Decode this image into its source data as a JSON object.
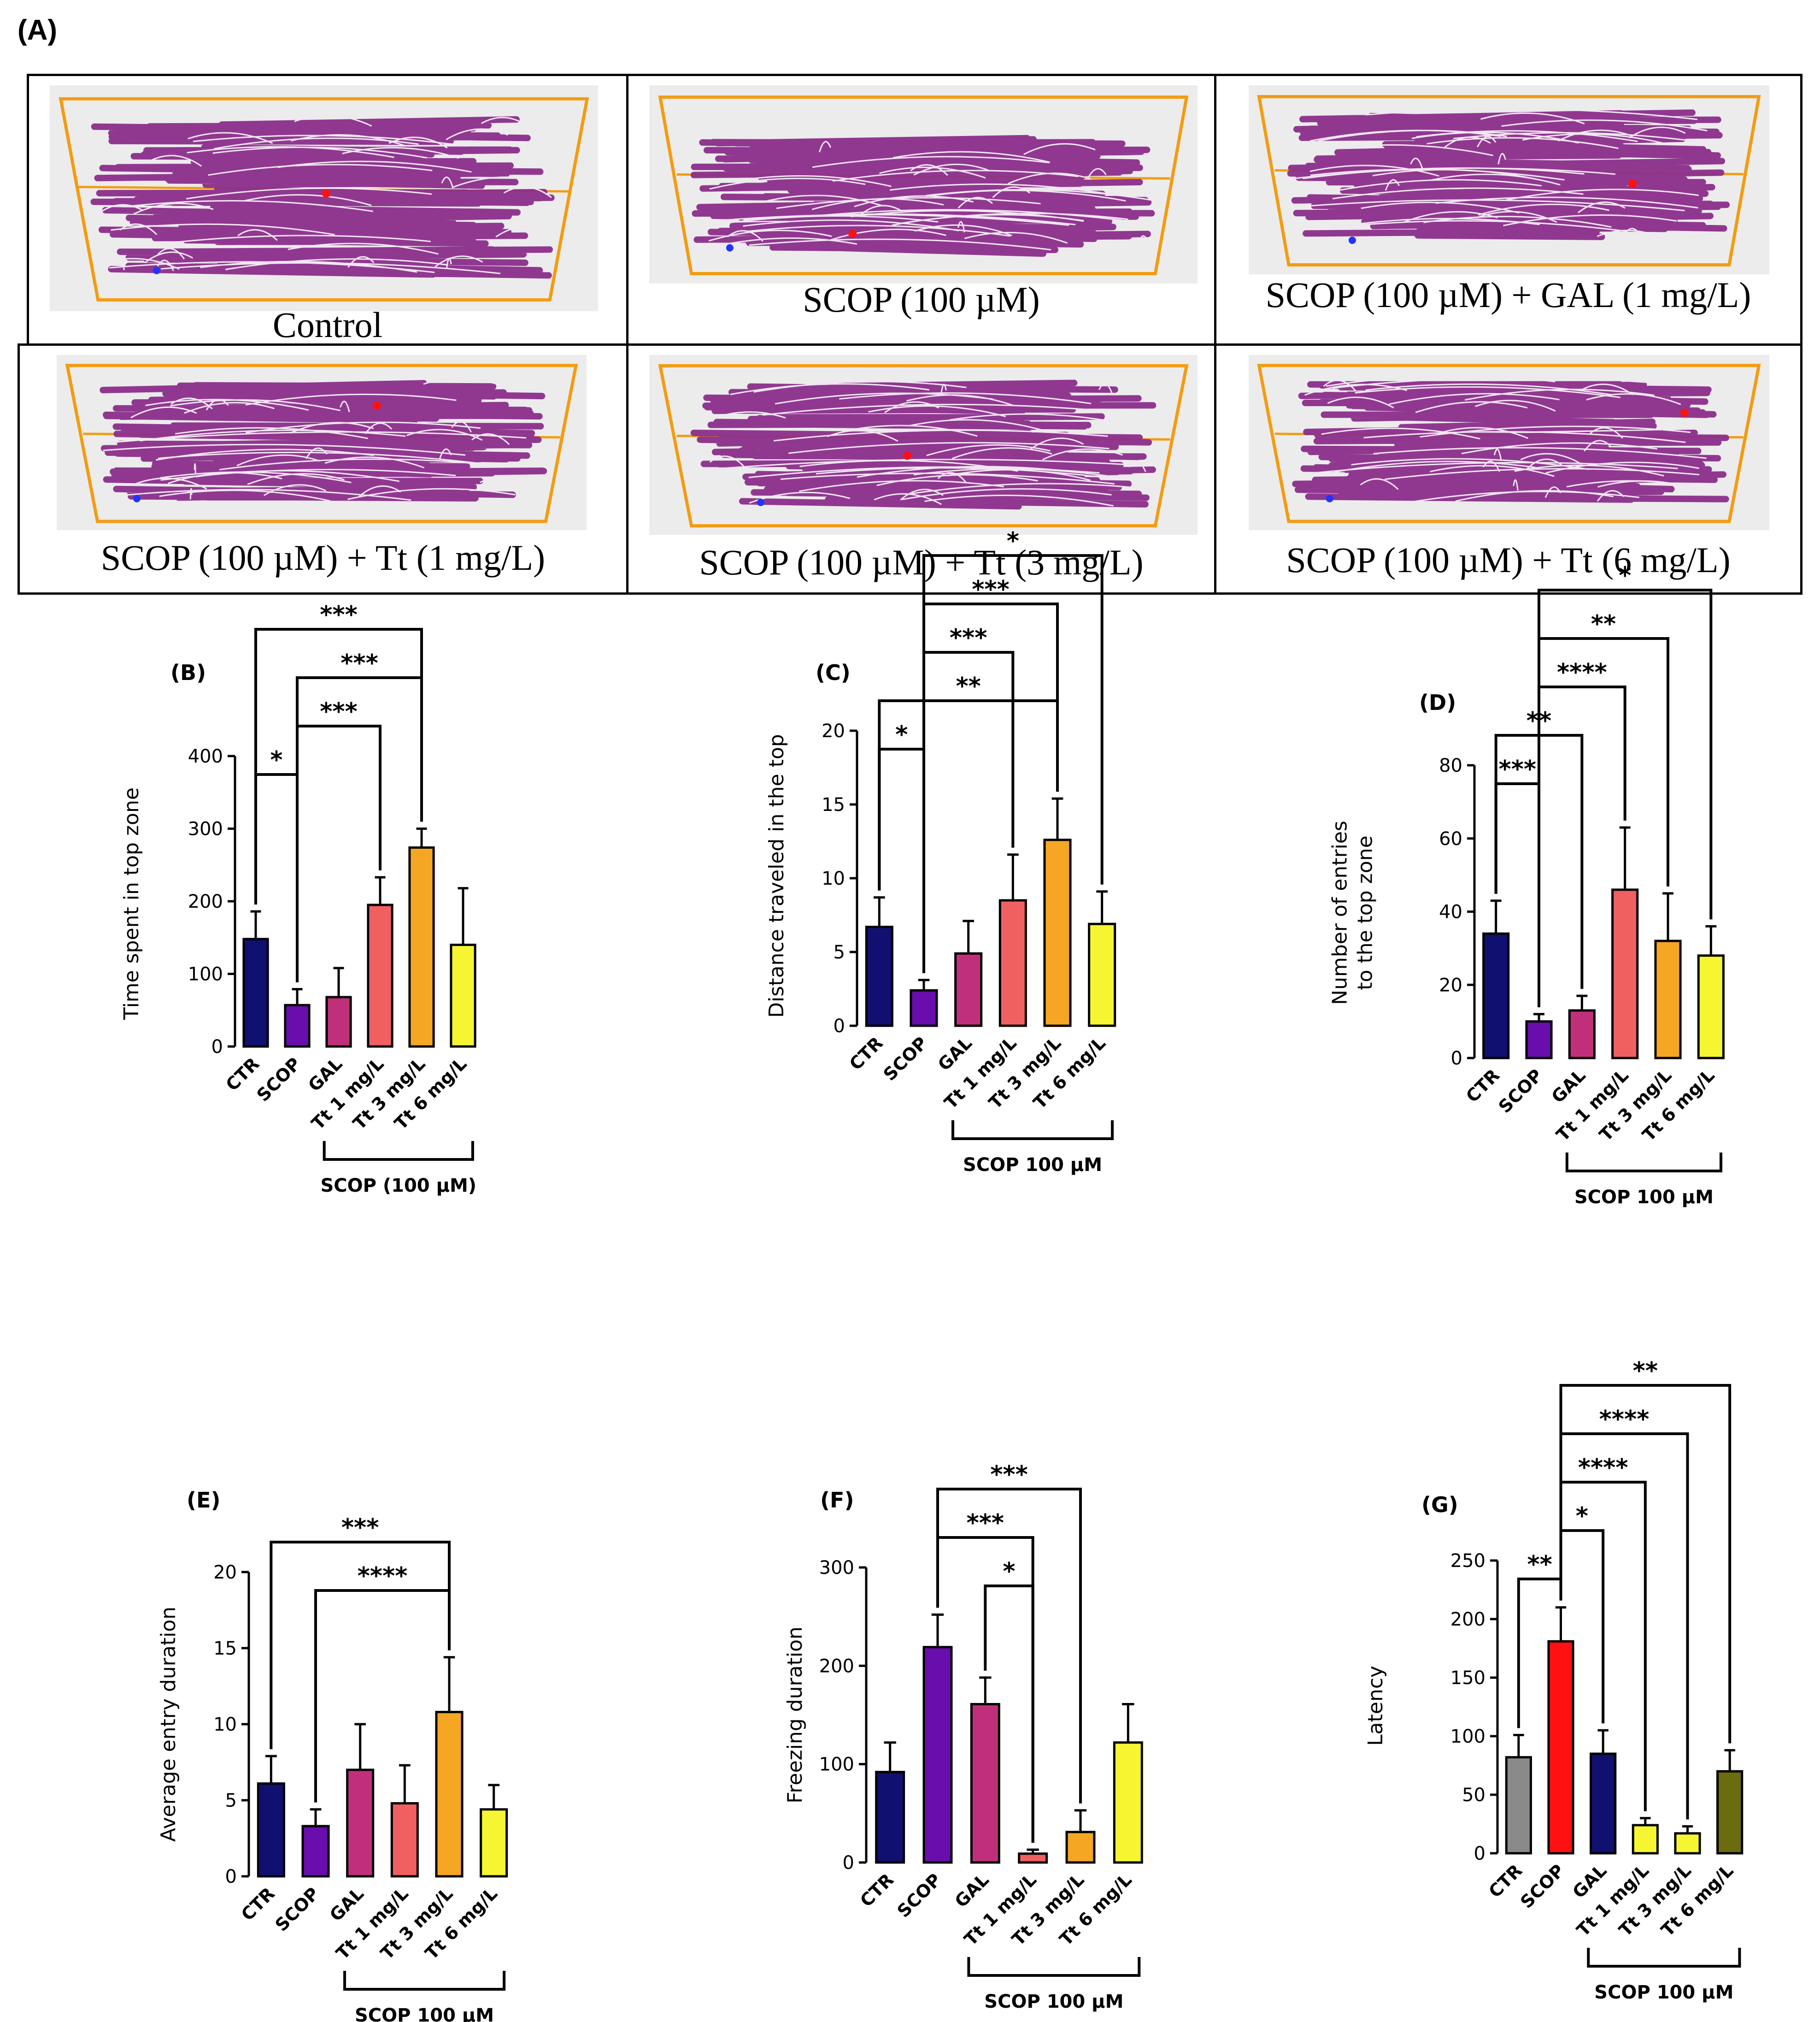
{
  "figure": {
    "panel_a_label": "(A)",
    "track_colors": {
      "path": "#8b2e8b",
      "arena": "#f39c12",
      "background": "#ececec",
      "start": "#2233ff",
      "end": "#ff1111"
    },
    "conditions": [
      "Control",
      "SCOP (100 µM)",
      "SCOP (100 µM) + GAL (1 mg/L)",
      "SCOP (100 µM) + Tt (1 mg/L)",
      "SCOP (100 µM) + Tt (3 mg/L)",
      "SCOP (100 µM) + Tt (6 mg/L)"
    ]
  },
  "chart_data": [
    {
      "id": "B",
      "panel": "(B)",
      "type": "bar",
      "ylabel": "Time spent in top zone",
      "ylim": [
        0,
        400
      ],
      "yticks": [
        0,
        100,
        200,
        300,
        400
      ],
      "categories": [
        "CTR",
        "SCOP",
        "GAL",
        "Tt 1 mg/L",
        "Tt 3 mg/L",
        "Tt 6 mg/L"
      ],
      "values": [
        148,
        57,
        68,
        195,
        274,
        140
      ],
      "errors": [
        38,
        22,
        40,
        38,
        26,
        78
      ],
      "colors": [
        "#101070",
        "#6a0dad",
        "#c0307a",
        "#f06060",
        "#f5a623",
        "#f5f532"
      ],
      "group_label": "SCOP (100 µM)",
      "comparisons": [
        {
          "from": 0,
          "to": 1,
          "stars": "*"
        },
        {
          "from": 1,
          "to": 3,
          "stars": "***"
        },
        {
          "from": 1,
          "to": 4,
          "stars": "***"
        },
        {
          "from": 0,
          "to": 4,
          "stars": "***"
        }
      ]
    },
    {
      "id": "C",
      "panel": "(C)",
      "type": "bar",
      "ylabel": "Distance traveled in the top",
      "ylim": [
        0,
        20
      ],
      "yticks": [
        0,
        5,
        10,
        15,
        20
      ],
      "categories": [
        "CTR",
        "SCOP",
        "GAL",
        "Tt 1 mg/L",
        "Tt 3 mg/L",
        "Tt 6 mg/L"
      ],
      "values": [
        6.7,
        2.4,
        4.9,
        8.5,
        12.6,
        6.9
      ],
      "errors": [
        2.0,
        0.7,
        2.2,
        3.1,
        2.8,
        2.2
      ],
      "colors": [
        "#101070",
        "#6a0dad",
        "#c0307a",
        "#f06060",
        "#f5a623",
        "#f5f532"
      ],
      "group_label": "SCOP 100 µM",
      "comparisons": [
        {
          "from": 0,
          "to": 1,
          "stars": "*"
        },
        {
          "from": 0,
          "to": 4,
          "stars": "**"
        },
        {
          "from": 1,
          "to": 3,
          "stars": "***"
        },
        {
          "from": 1,
          "to": 4,
          "stars": "***"
        },
        {
          "from": 1,
          "to": 5,
          "stars": "*"
        }
      ]
    },
    {
      "id": "D",
      "panel": "(D)",
      "type": "bar",
      "ylabel": "Number of entries to the top zone",
      "ylabel_lines": [
        "Number of entries",
        "to the top zone"
      ],
      "ylim": [
        0,
        80
      ],
      "yticks": [
        0,
        20,
        40,
        60,
        80
      ],
      "categories": [
        "CTR",
        "SCOP",
        "GAL",
        "Tt 1 mg/L",
        "Tt 3 mg/L",
        "Tt 6 mg/L"
      ],
      "values": [
        34,
        10,
        13,
        46,
        32,
        28
      ],
      "errors": [
        9,
        2,
        4,
        17,
        13,
        8
      ],
      "colors": [
        "#101070",
        "#6a0dad",
        "#c0307a",
        "#f06060",
        "#f5a623",
        "#f5f532"
      ],
      "group_label": "SCOP 100 µM",
      "comparisons": [
        {
          "from": 0,
          "to": 1,
          "stars": "***"
        },
        {
          "from": 0,
          "to": 2,
          "stars": "**"
        },
        {
          "from": 1,
          "to": 3,
          "stars": "****"
        },
        {
          "from": 1,
          "to": 4,
          "stars": "**"
        },
        {
          "from": 1,
          "to": 5,
          "stars": "*"
        }
      ]
    },
    {
      "id": "E",
      "panel": "(E)",
      "type": "bar",
      "ylabel": "Average entry duration",
      "ylim": [
        0,
        20
      ],
      "yticks": [
        0,
        5,
        10,
        15,
        20
      ],
      "categories": [
        "CTR",
        "SCOP",
        "GAL",
        "Tt 1 mg/L",
        "Tt 3 mg/L",
        "Tt 6 mg/L"
      ],
      "values": [
        6.1,
        3.3,
        7.0,
        4.8,
        10.8,
        4.4
      ],
      "errors": [
        1.8,
        1.1,
        3.0,
        2.5,
        3.6,
        1.6
      ],
      "colors": [
        "#101070",
        "#6a0dad",
        "#c0307a",
        "#f06060",
        "#f5a623",
        "#f5f532"
      ],
      "group_label": "SCOP 100 µM",
      "comparisons": [
        {
          "from": 1,
          "to": 4,
          "stars": "****"
        },
        {
          "from": 0,
          "to": 4,
          "stars": "***"
        }
      ]
    },
    {
      "id": "F",
      "panel": "(F)",
      "type": "bar",
      "ylabel": "Freezing duration",
      "ylim": [
        0,
        300
      ],
      "yticks": [
        0,
        100,
        200,
        300
      ],
      "categories": [
        "CTR",
        "SCOP",
        "GAL",
        "Tt 1 mg/L",
        "Tt 3 mg/L",
        "Tt 6 mg/L"
      ],
      "values": [
        92,
        219,
        161,
        9,
        31,
        122
      ],
      "errors": [
        30,
        33,
        27,
        4,
        22,
        39
      ],
      "colors": [
        "#101070",
        "#6a0dad",
        "#c0307a",
        "#f06060",
        "#f5a623",
        "#f5f532"
      ],
      "group_label": "SCOP 100 µM",
      "comparisons": [
        {
          "from": 2,
          "to": 3,
          "stars": "*"
        },
        {
          "from": 1,
          "to": 3,
          "stars": "***"
        },
        {
          "from": 1,
          "to": 4,
          "stars": "***"
        }
      ]
    },
    {
      "id": "G",
      "panel": "(G)",
      "type": "bar",
      "ylabel": "Latency",
      "ylim": [
        0,
        250
      ],
      "yticks": [
        0,
        50,
        100,
        150,
        200,
        250
      ],
      "categories": [
        "CTR",
        "SCOP",
        "GAL",
        "Tt 1 mg/L",
        "Tt 3 mg/L",
        "Tt 6 mg/L"
      ],
      "values": [
        82,
        181,
        85,
        24,
        17,
        70
      ],
      "errors": [
        19,
        29,
        20,
        6,
        6,
        18
      ],
      "colors": [
        "#8a8a8a",
        "#ff1111",
        "#101070",
        "#f5f532",
        "#f5f532",
        "#6b6b10"
      ],
      "group_label": "SCOP 100 µM",
      "comparisons": [
        {
          "from": 0,
          "to": 1,
          "stars": "**"
        },
        {
          "from": 1,
          "to": 2,
          "stars": "*"
        },
        {
          "from": 1,
          "to": 3,
          "stars": "****"
        },
        {
          "from": 1,
          "to": 4,
          "stars": "****"
        },
        {
          "from": 1,
          "to": 5,
          "stars": "**"
        }
      ]
    }
  ]
}
